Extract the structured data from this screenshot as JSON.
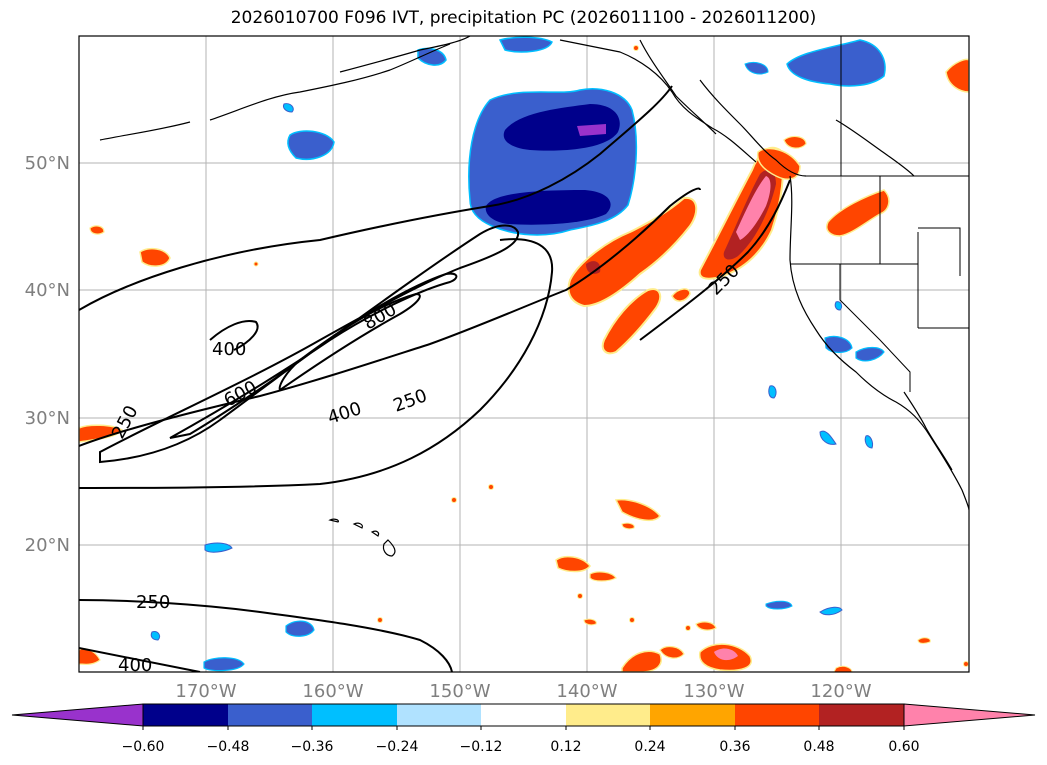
{
  "title": "2026010700 F096 IVT, precipitation PC (2026011100 - 2026011200)",
  "map": {
    "lat_labels": [
      "50°N",
      "40°N",
      "30°N",
      "20°N"
    ],
    "lon_labels": [
      "170°W",
      "160°W",
      "150°W",
      "140°W",
      "130°W",
      "120°W"
    ],
    "ivt_contour_labels": [
      "400",
      "800",
      "600",
      "400",
      "250",
      "250",
      "250",
      "250",
      "400"
    ],
    "ivt_contour_levels": [
      250,
      400,
      600,
      800
    ]
  },
  "colorbar": {
    "tick_labels": [
      "−0.60",
      "−0.48",
      "−0.36",
      "−0.24",
      "−0.12",
      "0.12",
      "0.24",
      "0.36",
      "0.48",
      "0.60"
    ],
    "colors": [
      "#9932cc",
      "#00008b",
      "#3a5fcd",
      "#00bfff",
      "#b0e2ff",
      "#ffffff",
      "#ffec8b",
      "#ffa500",
      "#ff4500",
      "#b22222",
      "#ff82ab"
    ]
  }
}
